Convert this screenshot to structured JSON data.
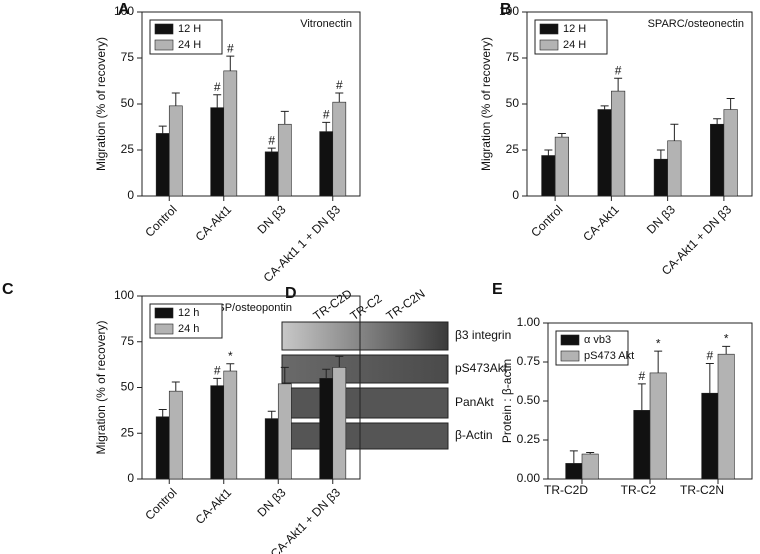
{
  "chart_data": [
    {
      "type": "bar",
      "label": "A",
      "title": "Vitronectin",
      "ylabel": "Migration (% of recovery)",
      "categories": [
        "Control",
        "CA-Akt1",
        "DN β3",
        "CA-Akt1 1 + DN β3"
      ],
      "ylim": [
        0,
        100
      ],
      "yticks": [
        0,
        25,
        50,
        75,
        100
      ],
      "series": [
        {
          "name": "12 H",
          "color": "#111111",
          "values": [
            34,
            48,
            24,
            35
          ],
          "errors": [
            4,
            7,
            2,
            5
          ],
          "markers": [
            null,
            "#",
            "#",
            "#"
          ]
        },
        {
          "name": "24 H",
          "color": "#b3b3b3",
          "values": [
            49,
            68,
            39,
            51
          ],
          "errors": [
            7,
            8,
            7,
            5
          ],
          "markers": [
            null,
            "#",
            null,
            "#"
          ]
        }
      ]
    },
    {
      "type": "bar",
      "label": "B",
      "title": "SPARC/osteonectin",
      "ylabel": "Migration (% of recovery)",
      "categories": [
        "Control",
        "CA-Akt1",
        "DN β3",
        "CA-Akt1 + DN β3"
      ],
      "ylim": [
        0,
        100
      ],
      "yticks": [
        0,
        25,
        50,
        75,
        100
      ],
      "series": [
        {
          "name": "12 H",
          "color": "#111111",
          "values": [
            22,
            47,
            20,
            39
          ],
          "errors": [
            3,
            2,
            5,
            3
          ],
          "markers": [
            null,
            null,
            null,
            null
          ]
        },
        {
          "name": "24 H",
          "color": "#b3b3b3",
          "values": [
            32,
            57,
            30,
            47
          ],
          "errors": [
            2,
            7,
            9,
            6
          ],
          "markers": [
            null,
            "#",
            null,
            null
          ]
        }
      ]
    },
    {
      "type": "bar",
      "label": "C",
      "title": "BSP/osteopontin",
      "ylabel": "Migration (% of recovery)",
      "categories": [
        "Control",
        "CA-Akt1",
        "DN β3",
        "CA-Akt1 + DN β3"
      ],
      "ylim": [
        0,
        100
      ],
      "yticks": [
        0,
        25,
        50,
        75,
        100
      ],
      "series": [
        {
          "name": "12 h",
          "color": "#111111",
          "values": [
            34,
            51,
            33,
            55
          ],
          "errors": [
            4,
            4,
            4,
            5
          ],
          "markers": [
            null,
            "#",
            null,
            null
          ]
        },
        {
          "name": "24 h",
          "color": "#b3b3b3",
          "values": [
            48,
            59,
            52,
            61
          ],
          "errors": [
            5,
            4,
            9,
            6
          ],
          "markers": [
            null,
            "*",
            null,
            null
          ]
        }
      ]
    },
    {
      "type": "bar",
      "label": "E",
      "ylabel": "Protein : β-actin",
      "categories": [
        "TR-C2D",
        "TR-C2",
        "TR-C2N"
      ],
      "ylim": [
        0,
        1
      ],
      "yticks": [
        {
          "value": 0,
          "label": "0.00"
        },
        {
          "value": 0.25,
          "label": "0.25"
        },
        {
          "value": 0.5,
          "label": "0.50"
        },
        {
          "value": 0.75,
          "label": "0.75"
        },
        {
          "value": 1,
          "label": "1.00"
        }
      ],
      "series": [
        {
          "name": "α vb3",
          "color": "#111111",
          "values": [
            0.1,
            0.44,
            0.55
          ],
          "errors": [
            0.08,
            0.17,
            0.19
          ],
          "markers": [
            null,
            "#",
            "#"
          ]
        },
        {
          "name": "pS473 Akt",
          "color": "#b3b3b3",
          "values": [
            0.16,
            0.68,
            0.8
          ],
          "errors": [
            0.01,
            0.14,
            0.05
          ],
          "markers": [
            null,
            "*",
            "*"
          ]
        }
      ]
    }
  ],
  "blot": {
    "label": "D",
    "lanes": [
      "TR-C2D",
      "TR-C2",
      "TR-C2N"
    ],
    "rows": [
      "β3 integrin",
      "pS473Akt",
      "PanAkt",
      "β-Actin"
    ]
  }
}
